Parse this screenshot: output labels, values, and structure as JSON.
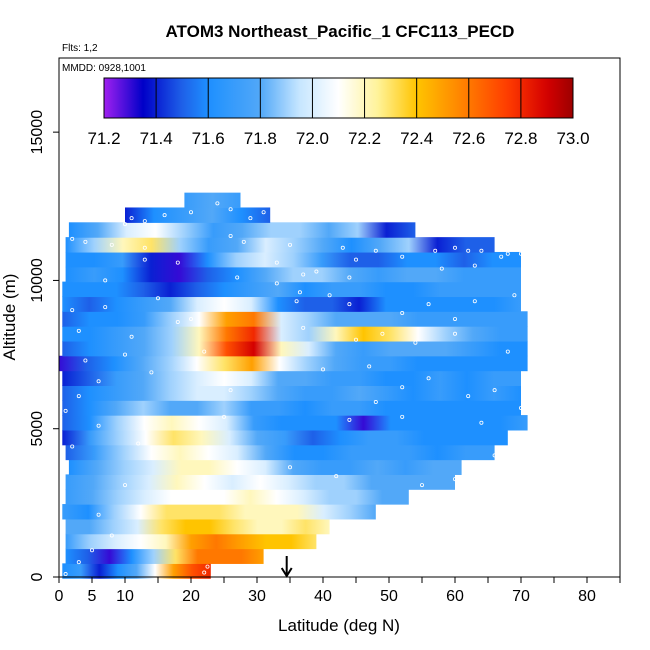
{
  "chart_data": {
    "type": "heatmap",
    "title": "ATOM3 Northeast_Pacific_1 CFC113_PECD",
    "flights_label": "Flts: 1,2",
    "dates_label": "MMDD: 0928,1001",
    "xlabel": "Latitude (deg N)",
    "ylabel": "Altitude (m)",
    "xlim": [
      0,
      85
    ],
    "ylim": [
      0,
      17500
    ],
    "x_ticks": [
      0,
      5,
      10,
      20,
      30,
      40,
      50,
      60,
      70,
      80
    ],
    "x_minor_ticks": [
      15,
      25,
      35,
      45,
      55,
      65,
      75,
      85
    ],
    "y_ticks": [
      0,
      5000,
      10000,
      15000
    ],
    "colorbar": {
      "min": 71.2,
      "max": 73.0,
      "ticks": [
        "71.2",
        "71.4",
        "71.6",
        "71.8",
        "72.0",
        "72.2",
        "72.4",
        "72.6",
        "72.8",
        "73.0"
      ],
      "stops": [
        [
          71.2,
          "#a020f0"
        ],
        [
          71.35,
          "#0000c8"
        ],
        [
          71.5,
          "#1e60e8"
        ],
        [
          71.6,
          "#1e90ff"
        ],
        [
          71.8,
          "#52a8f8"
        ],
        [
          71.95,
          "#c6e6ff"
        ],
        [
          72.1,
          "#ffffff"
        ],
        [
          72.25,
          "#fff39a"
        ],
        [
          72.4,
          "#ffc400"
        ],
        [
          72.55,
          "#ff8c00"
        ],
        [
          72.75,
          "#ff3c00"
        ],
        [
          72.9,
          "#d40000"
        ],
        [
          73.0,
          "#9c0000"
        ]
      ]
    },
    "marker": {
      "latitude": 34.5,
      "symbol": "arrow"
    },
    "grid": false,
    "layers": [
      {
        "alt": 200,
        "lat_min": 0.5,
        "lat_max": 23,
        "values": [
          71.6,
          71.7,
          71.4,
          71.6,
          71.8,
          72.1,
          72.5,
          72.7,
          72.8
        ]
      },
      {
        "alt": 700,
        "lat_min": 1,
        "lat_max": 31,
        "values": [
          71.6,
          71.5,
          71.3,
          71.6,
          71.9,
          72.3,
          72.6,
          72.6,
          72.6,
          72.5
        ]
      },
      {
        "alt": 1200,
        "lat_min": 1,
        "lat_max": 39,
        "values": [
          71.7,
          71.9,
          72.0,
          72.1,
          72.2,
          72.5,
          72.6,
          72.5,
          72.4,
          72.4,
          72.3
        ]
      },
      {
        "alt": 1700,
        "lat_min": 1,
        "lat_max": 41,
        "values": [
          71.8,
          71.8,
          71.9,
          72.0,
          72.3,
          72.4,
          72.4,
          72.3,
          72.2,
          72.2,
          72.3,
          72.2
        ]
      },
      {
        "alt": 2200,
        "lat_min": 0.5,
        "lat_max": 48,
        "values": [
          71.7,
          71.6,
          71.9,
          72.1,
          72.3,
          72.3,
          72.3,
          72.2,
          72.2,
          72.2,
          72.0,
          71.9,
          71.8
        ]
      },
      {
        "alt": 2700,
        "lat_min": 1,
        "lat_max": 53,
        "values": [
          71.7,
          71.8,
          71.9,
          72.0,
          72.1,
          72.1,
          72.1,
          72.2,
          72.1,
          72.0,
          71.9,
          71.9,
          71.8,
          71.8
        ]
      },
      {
        "alt": 3200,
        "lat_min": 1,
        "lat_max": 60,
        "values": [
          71.7,
          71.8,
          71.9,
          72.0,
          72.2,
          72.1,
          72.0,
          72.1,
          72.0,
          71.9,
          71.9,
          71.8,
          71.8,
          71.8,
          71.8
        ]
      },
      {
        "alt": 3700,
        "lat_min": 1.5,
        "lat_max": 61,
        "values": [
          71.6,
          71.8,
          71.9,
          72.0,
          72.2,
          72.2,
          72.1,
          72.0,
          71.8,
          71.7,
          71.7,
          71.8,
          71.7,
          71.8,
          71.8
        ]
      },
      {
        "alt": 4200,
        "lat_min": 1,
        "lat_max": 66,
        "values": [
          71.5,
          71.7,
          71.9,
          72.1,
          72.2,
          72.1,
          72.0,
          71.8,
          71.6,
          71.6,
          71.7,
          71.7,
          71.7,
          71.6,
          71.7,
          71.7
        ]
      },
      {
        "alt": 4700,
        "lat_min": 0.5,
        "lat_max": 68,
        "values": [
          71.4,
          71.7,
          71.9,
          72.1,
          72.3,
          72.2,
          72.0,
          71.8,
          71.7,
          71.5,
          71.6,
          71.7,
          71.7,
          71.6,
          71.6,
          71.6,
          71.6
        ]
      },
      {
        "alt": 5200,
        "lat_min": 0.5,
        "lat_max": 71,
        "values": [
          71.5,
          71.6,
          71.9,
          72.1,
          72.2,
          72.1,
          72.0,
          71.7,
          71.6,
          71.6,
          71.6,
          71.3,
          71.6,
          71.6,
          71.6,
          71.6,
          71.6,
          71.7
        ]
      },
      {
        "alt": 5700,
        "lat_min": 0.5,
        "lat_max": 70,
        "values": [
          71.5,
          71.6,
          71.8,
          71.9,
          71.8,
          71.8,
          71.9,
          71.7,
          71.7,
          71.6,
          71.7,
          71.7,
          71.6,
          71.6,
          71.6,
          71.6,
          71.6,
          71.6
        ]
      },
      {
        "alt": 6200,
        "lat_min": 0.5,
        "lat_max": 70,
        "values": [
          71.5,
          71.6,
          71.7,
          71.8,
          71.9,
          72.0,
          72.0,
          71.9,
          71.8,
          71.7,
          71.7,
          71.8,
          71.7,
          71.6,
          71.7,
          71.6,
          71.7,
          71.6
        ]
      },
      {
        "alt": 6700,
        "lat_min": 0.5,
        "lat_max": 70,
        "values": [
          71.4,
          71.5,
          71.7,
          71.8,
          71.9,
          72.0,
          72.1,
          72.0,
          71.8,
          71.8,
          71.7,
          71.7,
          71.6,
          71.6,
          71.7,
          71.6,
          71.7,
          71.7
        ]
      },
      {
        "alt": 7200,
        "lat_min": 0,
        "lat_max": 71,
        "values": [
          71.3,
          71.5,
          71.6,
          71.8,
          71.9,
          72.1,
          72.3,
          72.5,
          72.1,
          71.9,
          71.8,
          71.7,
          71.7,
          71.6,
          71.6,
          71.6,
          71.6,
          71.6
        ]
      },
      {
        "alt": 7700,
        "lat_min": 0.5,
        "lat_max": 71,
        "values": [
          71.5,
          71.6,
          71.7,
          71.8,
          71.9,
          72.2,
          72.7,
          72.9,
          72.2,
          72.0,
          71.8,
          71.7,
          71.8,
          71.8,
          71.8,
          71.7,
          71.6,
          71.6
        ]
      },
      {
        "alt": 8200,
        "lat_min": 0.5,
        "lat_max": 71,
        "values": [
          71.6,
          71.6,
          71.7,
          71.8,
          71.9,
          72.2,
          72.6,
          72.8,
          72.0,
          71.9,
          72.2,
          72.4,
          72.3,
          72.1,
          71.9,
          71.8,
          71.7,
          71.7
        ]
      },
      {
        "alt": 8700,
        "lat_min": 0.5,
        "lat_max": 71,
        "values": [
          71.5,
          71.6,
          71.6,
          71.7,
          71.9,
          72.1,
          72.5,
          72.6,
          72.0,
          71.9,
          71.8,
          71.8,
          71.8,
          71.7,
          71.7,
          71.7,
          71.7,
          71.7
        ]
      },
      {
        "alt": 9200,
        "lat_min": 0.5,
        "lat_max": 70,
        "values": [
          71.6,
          71.5,
          71.6,
          71.7,
          71.8,
          72.0,
          72.1,
          72.0,
          71.6,
          71.5,
          71.5,
          71.4,
          71.6,
          71.6,
          71.6,
          71.6,
          71.6,
          71.7
        ]
      },
      {
        "alt": 9700,
        "lat_min": 0.5,
        "lat_max": 70,
        "values": [
          71.6,
          71.6,
          71.6,
          71.5,
          71.4,
          71.5,
          71.6,
          71.7,
          71.8,
          71.6,
          71.7,
          71.7,
          71.6,
          71.6,
          71.7,
          71.7,
          71.7,
          71.7
        ]
      },
      {
        "alt": 10200,
        "lat_min": 1,
        "lat_max": 70,
        "values": [
          71.6,
          71.7,
          71.6,
          71.4,
          71.3,
          71.5,
          71.6,
          71.8,
          71.9,
          71.9,
          71.8,
          71.7,
          71.8,
          71.8,
          71.7,
          71.7,
          71.7
        ]
      },
      {
        "alt": 10700,
        "lat_min": 1,
        "lat_max": 70,
        "values": [
          71.6,
          71.6,
          71.7,
          71.4,
          71.3,
          71.6,
          71.9,
          72.0,
          71.9,
          71.7,
          71.5,
          71.5,
          71.6,
          71.6,
          71.5,
          71.6,
          71.6
        ]
      },
      {
        "alt": 11200,
        "lat_min": 1,
        "lat_max": 66,
        "values": [
          71.6,
          71.9,
          72.2,
          72.3,
          71.9,
          71.7,
          71.8,
          72.0,
          71.9,
          71.8,
          71.6,
          71.8,
          71.9,
          71.4,
          71.5,
          71.5
        ]
      },
      {
        "alt": 11700,
        "lat_min": 1.5,
        "lat_max": 54,
        "values": [
          71.6,
          71.8,
          72.0,
          72.1,
          71.9,
          71.7,
          71.8,
          71.9,
          71.9,
          71.8,
          71.9,
          71.4,
          71.5
        ]
      },
      {
        "alt": 12200,
        "lat_min": 10,
        "lat_max": 32,
        "values": [
          71.4,
          71.6,
          71.7,
          71.8,
          71.6,
          71.5
        ]
      },
      {
        "alt": 12700,
        "lat_min": 19,
        "lat_max": 27.5,
        "values": [
          71.7,
          71.8,
          71.7
        ]
      }
    ],
    "samples": [
      [
        1,
        100
      ],
      [
        3,
        500
      ],
      [
        5,
        900
      ],
      [
        6,
        2100
      ],
      [
        8,
        1400
      ],
      [
        22,
        150
      ],
      [
        22.5,
        350
      ],
      [
        10,
        3100
      ],
      [
        12,
        4500
      ],
      [
        35,
        3700
      ],
      [
        42,
        3400
      ],
      [
        55,
        3100
      ],
      [
        60,
        3300
      ],
      [
        66,
        4100
      ],
      [
        70,
        4600
      ],
      [
        65,
        3800
      ],
      [
        2,
        4400
      ],
      [
        6,
        5100
      ],
      [
        25,
        5400
      ],
      [
        44,
        5300
      ],
      [
        48,
        5900
      ],
      [
        52,
        5400
      ],
      [
        64,
        5200
      ],
      [
        70,
        5700
      ],
      [
        1,
        5600
      ],
      [
        3,
        6100
      ],
      [
        6,
        6600
      ],
      [
        14,
        6900
      ],
      [
        26,
        6300
      ],
      [
        52,
        6400
      ],
      [
        56,
        6700
      ],
      [
        62,
        6100
      ],
      [
        66,
        6300
      ],
      [
        4,
        7300
      ],
      [
        10,
        7500
      ],
      [
        22,
        7600
      ],
      [
        40,
        7000
      ],
      [
        47,
        7100
      ],
      [
        54,
        7900
      ],
      [
        60,
        8200
      ],
      [
        68,
        7600
      ],
      [
        3,
        8300
      ],
      [
        11,
        8100
      ],
      [
        18,
        8600
      ],
      [
        20,
        8700
      ],
      [
        37,
        8400
      ],
      [
        45,
        8000
      ],
      [
        49,
        8200
      ],
      [
        52,
        8900
      ],
      [
        60,
        8700
      ],
      [
        2,
        9000
      ],
      [
        7,
        9100
      ],
      [
        15,
        9400
      ],
      [
        36,
        9300
      ],
      [
        36.5,
        9600
      ],
      [
        41,
        9500
      ],
      [
        44,
        9200
      ],
      [
        56,
        9200
      ],
      [
        63,
        9300
      ],
      [
        69,
        9500
      ],
      [
        7,
        10000
      ],
      [
        27,
        10100
      ],
      [
        33,
        9900
      ],
      [
        37,
        10200
      ],
      [
        39,
        10300
      ],
      [
        44,
        10100
      ],
      [
        58,
        10400
      ],
      [
        63,
        10500
      ],
      [
        67,
        10800
      ],
      [
        68,
        10900
      ],
      [
        70,
        10900
      ],
      [
        13,
        10700
      ],
      [
        18,
        10600
      ],
      [
        33,
        10600
      ],
      [
        45,
        10700
      ],
      [
        48,
        11000
      ],
      [
        52,
        10800
      ],
      [
        2,
        11400
      ],
      [
        4,
        11300
      ],
      [
        8,
        11200
      ],
      [
        13,
        11100
      ],
      [
        26,
        11500
      ],
      [
        28,
        11300
      ],
      [
        35,
        11200
      ],
      [
        43,
        11100
      ],
      [
        57,
        11000
      ],
      [
        60,
        11100
      ],
      [
        62,
        11000
      ],
      [
        64,
        11000
      ],
      [
        10,
        11900
      ],
      [
        11,
        12100
      ],
      [
        13,
        12000
      ],
      [
        16,
        12200
      ],
      [
        20,
        12300
      ],
      [
        26,
        12400
      ],
      [
        29,
        12100
      ],
      [
        31,
        12300
      ],
      [
        24,
        12600
      ],
      [
        28.5,
        12700
      ]
    ]
  }
}
